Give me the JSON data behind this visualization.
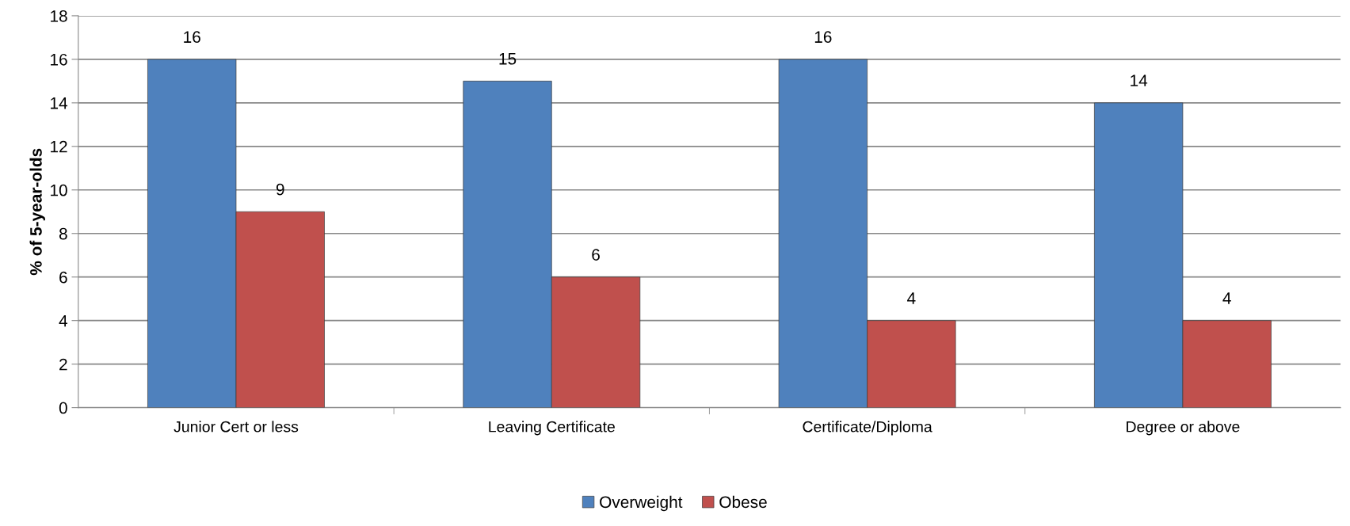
{
  "chart_data": {
    "type": "bar",
    "ylabel": "% of 5-year-olds",
    "categories": [
      "Junior Cert or less",
      "Leaving Certificate",
      "Certificate/Diploma",
      "Degree or above"
    ],
    "series": [
      {
        "name": "Overweight",
        "color": "#4f81bd",
        "values": [
          16,
          15,
          16,
          14
        ]
      },
      {
        "name": "Obese",
        "color": "#c0504d",
        "values": [
          9,
          6,
          4,
          4
        ]
      }
    ],
    "ylim": [
      0,
      18
    ],
    "yticks": [
      0,
      2,
      4,
      6,
      8,
      10,
      12,
      14,
      16,
      18
    ],
    "grid": "y",
    "legend": "bottom",
    "data_labels": true
  }
}
